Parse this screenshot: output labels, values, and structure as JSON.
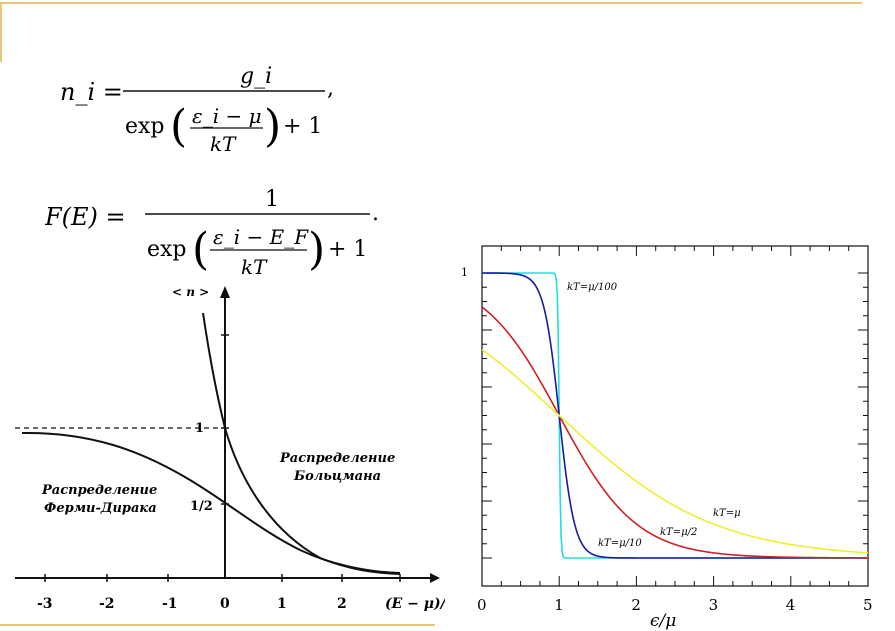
{
  "formula1": {
    "lhs": "n_i =",
    "numerator": "g_i",
    "exp": "exp",
    "inner_numerator": "ε_i − μ",
    "inner_denominator": "kT",
    "plus": "+ 1",
    "trail": ","
  },
  "formula2": {
    "lhs": "F(E) =",
    "numerator": "1",
    "exp": "exp",
    "inner_numerator": "ε_i − E_F",
    "inner_denominator": "kT",
    "plus": "+ 1",
    "trail": "."
  },
  "left_plot": {
    "y_axis_label": "< n >",
    "x_axis_label": "(E − μ)/kT",
    "ticks_x": [
      "-3",
      "-2",
      "-1",
      "0",
      "1",
      "2"
    ],
    "label_one": "1",
    "label_half": "1/2",
    "fd_label_line1": "Распределение",
    "fd_label_line2": "Ферми-Дирака",
    "mb_label_line1": "Распределение",
    "mb_label_line2": "Больцмана"
  },
  "chart_data": {
    "type": "line",
    "xlabel": "ϵ/μ",
    "ylabel": "",
    "xlim": [
      0,
      5
    ],
    "ylim": [
      0,
      1
    ],
    "x_ticks": [
      "0",
      "1",
      "2",
      "3",
      "4",
      "5"
    ],
    "y_ticks": [
      "1"
    ],
    "series": [
      {
        "name": "kT=μ/100",
        "color": "#22dddd",
        "x": [
          0,
          0.9,
          0.97,
          1.0,
          1.03,
          1.1,
          5
        ],
        "y": [
          1,
          1,
          0.95,
          0.5,
          0.05,
          0,
          0
        ]
      },
      {
        "name": "kT=μ/10",
        "color": "#1a1aa0",
        "x": [
          0,
          0.5,
          0.8,
          1.0,
          1.2,
          1.5,
          2,
          5
        ],
        "y": [
          0.99,
          0.99,
          0.88,
          0.5,
          0.12,
          0.01,
          0,
          0
        ]
      },
      {
        "name": "kT=μ/2",
        "color": "#d02020",
        "x": [
          0,
          0.5,
          1.0,
          1.5,
          2,
          3,
          4,
          5
        ],
        "y": [
          0.88,
          0.73,
          0.5,
          0.27,
          0.12,
          0.02,
          0.003,
          0
        ]
      },
      {
        "name": "kT=μ",
        "color": "#eeee33",
        "x": [
          0,
          0.5,
          1.0,
          1.5,
          2,
          3,
          4,
          5
        ],
        "y": [
          0.73,
          0.62,
          0.5,
          0.38,
          0.27,
          0.12,
          0.05,
          0.02
        ]
      }
    ]
  }
}
